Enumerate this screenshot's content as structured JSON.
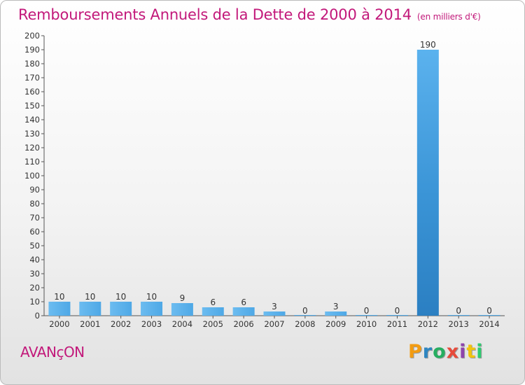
{
  "title": "Remboursements Annuels de la Dette de 2000 à 2014",
  "unit": "(en milliers d'€)",
  "town": "AVANçON",
  "logo": {
    "text": "Proxiti",
    "letters": [
      "P",
      "r",
      "o",
      "x",
      "i",
      "t",
      "i"
    ],
    "colors": [
      "#f39c12",
      "#2e86c1",
      "#27ae60",
      "#e74c3c",
      "#8e44ad",
      "#f1c40f",
      "#2ecc71"
    ]
  },
  "chart_data": {
    "type": "bar",
    "categories": [
      "2000",
      "2001",
      "2002",
      "2003",
      "2004",
      "2005",
      "2006",
      "2007",
      "2008",
      "2009",
      "2010",
      "2011",
      "2012",
      "2013",
      "2014"
    ],
    "values": [
      10,
      10,
      10,
      10,
      9,
      6,
      6,
      3,
      0,
      3,
      0,
      0,
      190,
      0,
      0
    ],
    "ylim": [
      0,
      200
    ],
    "yticks": [
      0,
      10,
      20,
      30,
      40,
      50,
      60,
      70,
      80,
      90,
      100,
      110,
      120,
      130,
      140,
      150,
      160,
      170,
      180,
      190,
      200
    ],
    "grid": false,
    "bar_color": "#4ea8e6",
    "highlight_color": "#2b7fc2",
    "highlight_index": 12
  }
}
